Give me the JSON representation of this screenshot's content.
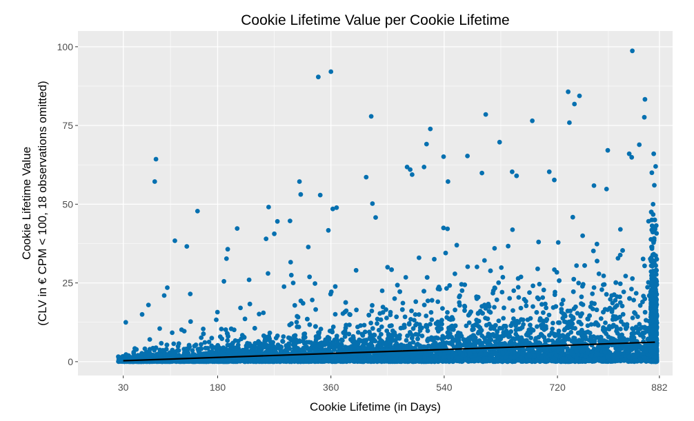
{
  "chart_data": {
    "type": "scatter",
    "title": "Cookie Lifetime Value per Cookie Lifetime",
    "xlabel": "Cookie Lifetime (in Days)",
    "ylabel_lines": [
      "Cookie Lifetime Value",
      "(CLV in € CPM < 100, 18 observations omitted)"
    ],
    "xlim": [
      -42,
      903
    ],
    "ylim": [
      -4.4,
      105
    ],
    "x_ticks": [
      30,
      180,
      360,
      540,
      720,
      882
    ],
    "y_ticks": [
      0,
      25,
      50,
      75,
      100
    ],
    "grid": true,
    "point_color": "#0570B0",
    "line_color": "#000000",
    "trend_line": {
      "x": [
        30,
        875
      ],
      "y": [
        0.3,
        6.2
      ]
    },
    "dense_cloud": {
      "x_range": [
        22,
        878
      ],
      "count": 6000,
      "note": "dense band of observations near 0, spread increasing with lifetime"
    },
    "outliers": [
      [
        839,
        98.7
      ],
      [
        340,
        90.4
      ],
      [
        360,
        92.1
      ],
      [
        424,
        77.9
      ],
      [
        82,
        64.3
      ],
      [
        80,
        57.2
      ],
      [
        148,
        47.8
      ],
      [
        112,
        38.4
      ],
      [
        131,
        36.6
      ],
      [
        211,
        42.3
      ],
      [
        196,
        35.7
      ],
      [
        194,
        32.7
      ],
      [
        261,
        49.1
      ],
      [
        257,
        39.0
      ],
      [
        270,
        40.6
      ],
      [
        310,
        57.2
      ],
      [
        312,
        53.1
      ],
      [
        295,
        44.7
      ],
      [
        296,
        31.6
      ],
      [
        343,
        52.9
      ],
      [
        363,
        48.5
      ],
      [
        369,
        48.9
      ],
      [
        356,
        41.7
      ],
      [
        324,
        36.4
      ],
      [
        416,
        58.6
      ],
      [
        426,
        50.2
      ],
      [
        431,
        45.8
      ],
      [
        481,
        61.8
      ],
      [
        486,
        61.0
      ],
      [
        489,
        59.4
      ],
      [
        512,
        69.1
      ],
      [
        518,
        73.9
      ],
      [
        508,
        61.8
      ],
      [
        539,
        65.1
      ],
      [
        546,
        57.2
      ],
      [
        577,
        65.3
      ],
      [
        600,
        59.9
      ],
      [
        606,
        78.5
      ],
      [
        628,
        69.7
      ],
      [
        648,
        60.3
      ],
      [
        655,
        59.0
      ],
      [
        680,
        76.5
      ],
      [
        707,
        60.3
      ],
      [
        715,
        57.7
      ],
      [
        737,
        85.7
      ],
      [
        739,
        75.9
      ],
      [
        747,
        81.8
      ],
      [
        755,
        84.4
      ],
      [
        800,
        67.1
      ],
      [
        778,
        55.9
      ],
      [
        798,
        54.8
      ],
      [
        834,
        66.0
      ],
      [
        838,
        64.9
      ],
      [
        850,
        68.9
      ],
      [
        859,
        83.3
      ],
      [
        858,
        77.6
      ],
      [
        34,
        12.5
      ],
      [
        60,
        15
      ],
      [
        70,
        18
      ],
      [
        95,
        21
      ],
      [
        100,
        23.5
      ],
      [
        190,
        25.5
      ],
      [
        230,
        26
      ],
      [
        260,
        28
      ],
      [
        300,
        25
      ],
      [
        400,
        29
      ],
      [
        450,
        30
      ],
      [
        500,
        33
      ],
      [
        560,
        37
      ],
      [
        620,
        36
      ],
      [
        690,
        38
      ],
      [
        760,
        40
      ],
      [
        820,
        42
      ],
      [
        870,
        45
      ],
      [
        872,
        50
      ],
      [
        874,
        56
      ],
      [
        870,
        60
      ],
      [
        876,
        62
      ],
      [
        873,
        66
      ]
    ]
  }
}
